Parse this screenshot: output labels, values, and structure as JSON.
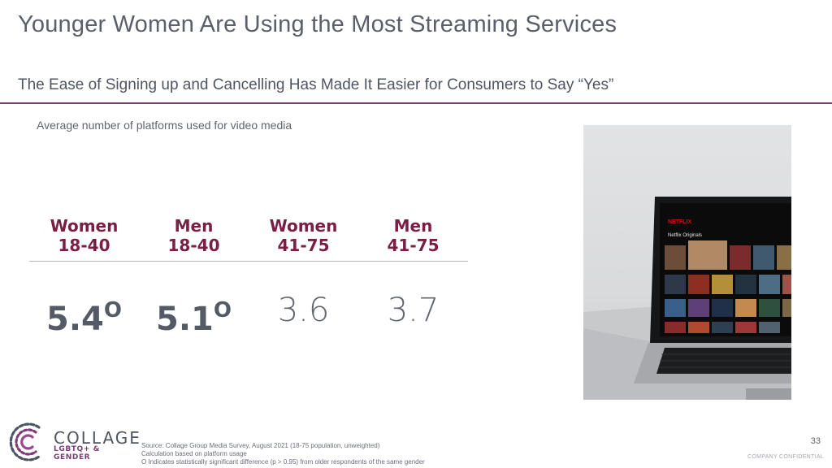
{
  "title": "Younger Women Are Using the Most Streaming Services",
  "subtitle": "The Ease of Signing up and Cancelling Has Made It Easier for Consumers to Say “Yes”",
  "chart_caption": "Average number of platforms used for video media",
  "segments": [
    {
      "line1": "Women",
      "line2": "18-40",
      "value": "5.4",
      "marker": "O"
    },
    {
      "line1": "Men",
      "line2": "18-40",
      "value": "5.1",
      "marker": "O"
    },
    {
      "line1": "Women",
      "line2": "41-75",
      "value": "3.6",
      "marker": ""
    },
    {
      "line1": "Men",
      "line2": "41-75",
      "value": "3.7",
      "marker": ""
    }
  ],
  "chart_data": {
    "type": "table",
    "categories": [
      "Women 18-40",
      "Men 18-40",
      "Women 41-75",
      "Men 41-75"
    ],
    "values": [
      5.4,
      5.1,
      3.6,
      3.7
    ],
    "title": "Average number of platforms used for video media"
  },
  "laptop_screen": {
    "brand": "NETFLIX",
    "row_title": "Netflix Originals"
  },
  "logo": {
    "name": "COLLAGE",
    "tagline": "LGBTQ+ & GENDER"
  },
  "source": {
    "line1": "Source: Collage Group Media Survey, August 2021 (18-75 population, unweighted)",
    "line2": "Calculation based on platform usage",
    "line3": "O Indicates statistically significant difference (p > 0.95) from older respondents of the same gender"
  },
  "page_number": "33",
  "confidential": "COMPANY CONFIDENTIAL",
  "colors": {
    "accent": "#7d3c77",
    "header_text": "#7a1e45",
    "body_text": "#555b66"
  }
}
